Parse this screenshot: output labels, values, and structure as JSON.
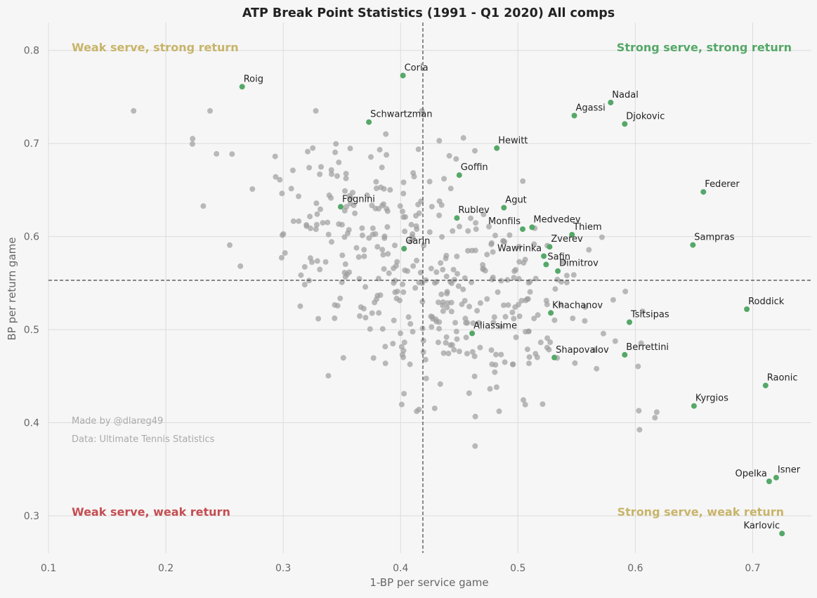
{
  "chart_data": {
    "type": "scatter",
    "title": "ATP Break Point Statistics (1991 - Q1 2020) All comps",
    "xlabel": "1-BP per service game",
    "ylabel": "BP per return game",
    "xlim": [
      0.1,
      0.75
    ],
    "ylim": [
      0.26,
      0.83
    ],
    "x_ticks": [
      "0.1",
      "0.2",
      "0.3",
      "0.4",
      "0.5",
      "0.6",
      "0.7"
    ],
    "y_ticks": [
      "0.3",
      "0.4",
      "0.5",
      "0.6",
      "0.7",
      "0.8"
    ],
    "grid": true,
    "reference_lines": {
      "x": 0.419,
      "y": 0.553
    },
    "quadrant_labels": [
      {
        "text": "Weak serve, strong return",
        "color": "#c8b46a"
      },
      {
        "text": "Strong serve, strong return",
        "color": "#55a868"
      },
      {
        "text": "Weak serve, weak return",
        "color": "#c44e52"
      },
      {
        "text": "Strong serve, weak return",
        "color": "#c8b46a"
      }
    ],
    "credits": [
      "Made by @dlareg49",
      "Data: Ultimate Tennis Statistics"
    ],
    "colors": {
      "highlight": "#55a868",
      "background_points": "#9e9e9e"
    },
    "highlighted": [
      {
        "name": "Roig",
        "x": 0.265,
        "y": 0.761
      },
      {
        "name": "Coria",
        "x": 0.402,
        "y": 0.773
      },
      {
        "name": "Nadal",
        "x": 0.579,
        "y": 0.744
      },
      {
        "name": "Agassi",
        "x": 0.548,
        "y": 0.73
      },
      {
        "name": "Djokovic",
        "x": 0.591,
        "y": 0.721
      },
      {
        "name": "Schwartzman",
        "x": 0.373,
        "y": 0.723
      },
      {
        "name": "Hewitt",
        "x": 0.482,
        "y": 0.695
      },
      {
        "name": "Goffin",
        "x": 0.45,
        "y": 0.666
      },
      {
        "name": "Federer",
        "x": 0.658,
        "y": 0.648
      },
      {
        "name": "Fognini",
        "x": 0.349,
        "y": 0.632
      },
      {
        "name": "Agut",
        "x": 0.488,
        "y": 0.631
      },
      {
        "name": "Rublev",
        "x": 0.448,
        "y": 0.62
      },
      {
        "name": "Monfils",
        "x": 0.504,
        "y": 0.608
      },
      {
        "name": "Medvedev",
        "x": 0.512,
        "y": 0.61
      },
      {
        "name": "Thiem",
        "x": 0.546,
        "y": 0.602
      },
      {
        "name": "Garin",
        "x": 0.403,
        "y": 0.587
      },
      {
        "name": "Zverev",
        "x": 0.527,
        "y": 0.589
      },
      {
        "name": "Sampras",
        "x": 0.649,
        "y": 0.591
      },
      {
        "name": "Wawrinka",
        "x": 0.522,
        "y": 0.579
      },
      {
        "name": "Safin",
        "x": 0.524,
        "y": 0.57
      },
      {
        "name": "Dimitrov",
        "x": 0.534,
        "y": 0.563
      },
      {
        "name": "Roddick",
        "x": 0.695,
        "y": 0.522
      },
      {
        "name": "Khachanov",
        "x": 0.528,
        "y": 0.518
      },
      {
        "name": "Tsitsipas",
        "x": 0.595,
        "y": 0.508
      },
      {
        "name": "Aliassime",
        "x": 0.461,
        "y": 0.496
      },
      {
        "name": "Berrettini",
        "x": 0.591,
        "y": 0.473
      },
      {
        "name": "Shapovalov",
        "x": 0.531,
        "y": 0.47
      },
      {
        "name": "Raonic",
        "x": 0.711,
        "y": 0.44
      },
      {
        "name": "Kyrgios",
        "x": 0.65,
        "y": 0.418
      },
      {
        "name": "Opelka",
        "x": 0.714,
        "y": 0.337
      },
      {
        "name": "Isner",
        "x": 0.72,
        "y": 0.341
      },
      {
        "name": "Karlovic",
        "x": 0.725,
        "y": 0.281
      }
    ],
    "others_count": 420
  }
}
